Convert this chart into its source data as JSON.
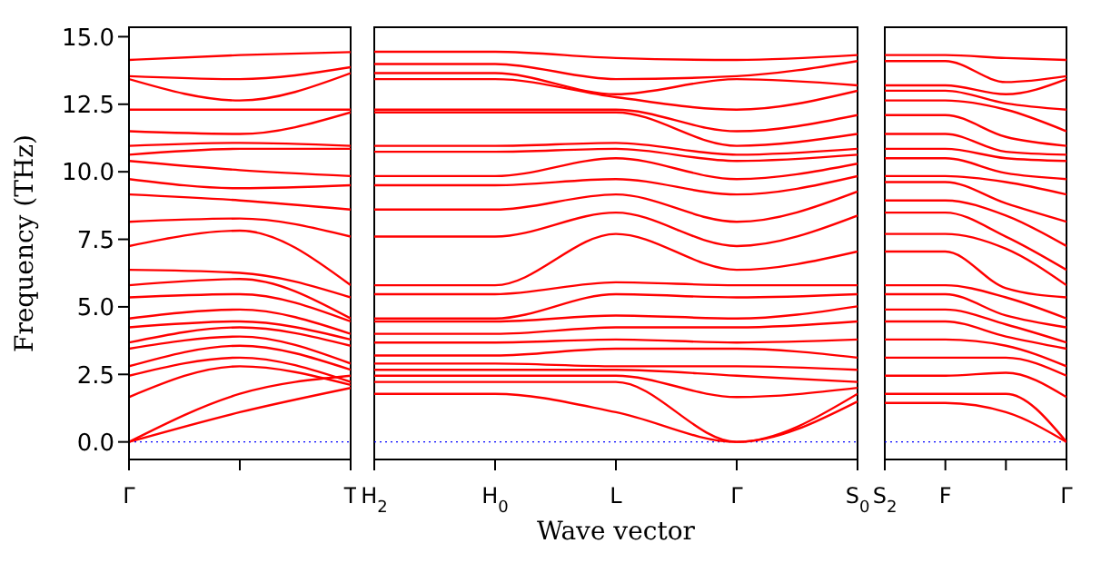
{
  "chart_data": [
    {
      "type": "line",
      "ylabel": "Frequency (THz)",
      "categories": [
        "Γ",
        null,
        "T"
      ],
      "ylim": [
        -0.65,
        15.35
      ],
      "yticks": [
        {
          "value": 0,
          "label": "0.0"
        },
        {
          "value": 2.5,
          "label": "2.5"
        },
        {
          "value": 5,
          "label": "5.0"
        },
        {
          "value": 7.5,
          "label": "7.5"
        },
        {
          "value": 10,
          "label": "10.0"
        },
        {
          "value": 12.5,
          "label": "12.5"
        },
        {
          "value": 15,
          "label": "15.0"
        }
      ],
      "ref_lines": [
        {
          "axis": "y",
          "value": 0,
          "color": "#0000ff",
          "line_style": "dotted"
        }
      ],
      "series": [
        {
          "color": "#ff0000",
          "values": [
            0,
            1.1,
            2.0
          ]
        },
        {
          "color": "#ff0000",
          "values": [
            0,
            1.78,
            2.45
          ]
        },
        {
          "color": "#ff0000",
          "values": [
            1.66,
            2.8,
            2.11
          ]
        },
        {
          "color": "#ff0000",
          "values": [
            2.45,
            3.12,
            2.22
          ]
        },
        {
          "color": "#ff0000",
          "values": [
            2.8,
            3.56,
            2.67
          ]
        },
        {
          "color": "#ff0000",
          "values": [
            3.45,
            3.9,
            2.9
          ]
        },
        {
          "color": "#ff0000",
          "values": [
            3.68,
            4.24,
            3.56
          ]
        },
        {
          "color": "#ff0000",
          "values": [
            4.24,
            4.46,
            3.79
          ]
        },
        {
          "color": "#ff0000",
          "values": [
            4.57,
            4.9,
            4.0
          ]
        },
        {
          "color": "#ff0000",
          "values": [
            5.35,
            5.47,
            4.46
          ]
        },
        {
          "color": "#ff0000",
          "values": [
            5.8,
            6.03,
            4.57
          ]
        },
        {
          "color": "#ff0000",
          "values": [
            6.37,
            6.26,
            5.35
          ]
        },
        {
          "color": "#ff0000",
          "values": [
            7.25,
            7.82,
            5.8
          ]
        },
        {
          "color": "#ff0000",
          "values": [
            8.15,
            8.27,
            7.6
          ]
        },
        {
          "color": "#ff0000",
          "values": [
            9.16,
            8.94,
            8.6
          ]
        },
        {
          "color": "#ff0000",
          "values": [
            9.73,
            9.39,
            9.5
          ]
        },
        {
          "color": "#ff0000",
          "values": [
            10.4,
            10.06,
            9.84
          ]
        },
        {
          "color": "#ff0000",
          "values": [
            10.63,
            10.85,
            10.85
          ]
        },
        {
          "color": "#ff0000",
          "values": [
            10.96,
            11.07,
            10.96
          ]
        },
        {
          "color": "#ff0000",
          "values": [
            11.5,
            11.4,
            12.2
          ]
        },
        {
          "color": "#ff0000",
          "values": [
            12.3,
            12.3,
            12.3
          ]
        },
        {
          "color": "#ff0000",
          "values": [
            13.43,
            12.64,
            13.65
          ]
        },
        {
          "color": "#ff0000",
          "values": [
            13.54,
            13.43,
            13.87
          ]
        },
        {
          "color": "#ff0000",
          "values": [
            14.14,
            14.32,
            14.43
          ]
        }
      ]
    },
    {
      "type": "line",
      "xlabel": "Wave vector",
      "tick_labels": "x",
      "categories": [
        "H$_{2}$",
        "H$_{0}$",
        "L",
        "Γ",
        "S$_{0}$"
      ],
      "ylim": [
        -0.65,
        15.35
      ],
      "ref_lines": [
        {
          "axis": "y",
          "value": 0,
          "color": "#0000ff",
          "line_style": "dotted"
        }
      ],
      "series": [
        {
          "color": "#ff0000",
          "values": [
            1.78,
            1.78,
            1.1,
            0,
            1.5
          ]
        },
        {
          "color": "#ff0000",
          "values": [
            2.22,
            2.22,
            2.22,
            0,
            1.78
          ]
        },
        {
          "color": "#ff0000",
          "values": [
            2.45,
            2.45,
            2.45,
            1.66,
            2.0
          ]
        },
        {
          "color": "#ff0000",
          "values": [
            2.67,
            2.67,
            2.67,
            2.45,
            2.22
          ]
        },
        {
          "color": "#ff0000",
          "values": [
            2.9,
            2.9,
            2.8,
            2.8,
            2.67
          ]
        },
        {
          "color": "#ff0000",
          "values": [
            3.2,
            3.2,
            3.45,
            3.45,
            3.12
          ]
        },
        {
          "color": "#ff0000",
          "values": [
            3.68,
            3.68,
            3.79,
            3.68,
            3.79
          ]
        },
        {
          "color": "#ff0000",
          "values": [
            4.0,
            4.0,
            4.24,
            4.24,
            4.46
          ]
        },
        {
          "color": "#ff0000",
          "values": [
            4.46,
            4.46,
            4.68,
            4.57,
            5.02
          ]
        },
        {
          "color": "#ff0000",
          "values": [
            4.57,
            4.57,
            5.47,
            5.35,
            5.47
          ]
        },
        {
          "color": "#ff0000",
          "values": [
            5.47,
            5.47,
            5.91,
            5.8,
            5.8
          ]
        },
        {
          "color": "#ff0000",
          "values": [
            5.8,
            5.8,
            7.7,
            6.37,
            7.05
          ]
        },
        {
          "color": "#ff0000",
          "values": [
            7.6,
            7.6,
            8.49,
            7.25,
            8.38
          ]
        },
        {
          "color": "#ff0000",
          "values": [
            8.6,
            8.6,
            9.16,
            8.15,
            9.27
          ]
        },
        {
          "color": "#ff0000",
          "values": [
            9.5,
            9.5,
            9.73,
            9.16,
            9.84
          ]
        },
        {
          "color": "#ff0000",
          "values": [
            9.84,
            9.84,
            10.5,
            9.73,
            10.3
          ]
        },
        {
          "color": "#ff0000",
          "values": [
            10.74,
            10.74,
            10.85,
            10.4,
            10.63
          ]
        },
        {
          "color": "#ff0000",
          "values": [
            10.96,
            10.96,
            11.07,
            10.63,
            10.85
          ]
        },
        {
          "color": "#ff0000",
          "values": [
            12.2,
            12.2,
            12.2,
            10.96,
            11.4
          ]
        },
        {
          "color": "#ff0000",
          "values": [
            12.3,
            12.3,
            12.3,
            11.5,
            12.1
          ]
        },
        {
          "color": "#ff0000",
          "values": [
            13.43,
            13.43,
            12.76,
            12.3,
            13.0
          ]
        },
        {
          "color": "#ff0000",
          "values": [
            13.65,
            13.65,
            12.87,
            13.43,
            13.2
          ]
        },
        {
          "color": "#ff0000",
          "values": [
            13.99,
            13.99,
            13.43,
            13.54,
            14.1
          ]
        },
        {
          "color": "#ff0000",
          "values": [
            14.44,
            14.44,
            14.21,
            14.14,
            14.32
          ]
        }
      ]
    },
    {
      "type": "line",
      "tick_labels": "x",
      "categories": [
        "S$_{2}$",
        "F",
        null,
        "Γ"
      ],
      "ylim": [
        -0.65,
        15.35
      ],
      "ref_lines": [
        {
          "axis": "y",
          "value": 0,
          "color": "#0000ff",
          "line_style": "dotted"
        }
      ],
      "series": [
        {
          "color": "#ff0000",
          "values": [
            1.44,
            1.44,
            1.1,
            0
          ]
        },
        {
          "color": "#ff0000",
          "values": [
            1.78,
            1.78,
            1.78,
            0
          ]
        },
        {
          "color": "#ff0000",
          "values": [
            2.45,
            2.45,
            2.56,
            1.66
          ]
        },
        {
          "color": "#ff0000",
          "values": [
            3.12,
            3.12,
            3.12,
            2.45
          ]
        },
        {
          "color": "#ff0000",
          "values": [
            3.79,
            3.79,
            3.56,
            2.8
          ]
        },
        {
          "color": "#ff0000",
          "values": [
            4.46,
            4.46,
            3.9,
            3.45
          ]
        },
        {
          "color": "#ff0000",
          "values": [
            4.9,
            4.9,
            4.35,
            3.68
          ]
        },
        {
          "color": "#ff0000",
          "values": [
            5.47,
            5.47,
            4.68,
            4.24
          ]
        },
        {
          "color": "#ff0000",
          "values": [
            5.8,
            5.8,
            5.35,
            4.57
          ]
        },
        {
          "color": "#ff0000",
          "values": [
            7.05,
            7.05,
            5.69,
            5.35
          ]
        },
        {
          "color": "#ff0000",
          "values": [
            7.7,
            7.7,
            7.15,
            5.8
          ]
        },
        {
          "color": "#ff0000",
          "values": [
            8.49,
            8.49,
            7.6,
            6.37
          ]
        },
        {
          "color": "#ff0000",
          "values": [
            8.94,
            8.94,
            8.38,
            7.25
          ]
        },
        {
          "color": "#ff0000",
          "values": [
            9.62,
            9.62,
            8.83,
            8.15
          ]
        },
        {
          "color": "#ff0000",
          "values": [
            9.84,
            9.84,
            9.62,
            9.16
          ]
        },
        {
          "color": "#ff0000",
          "values": [
            10.5,
            10.5,
            9.95,
            9.73
          ]
        },
        {
          "color": "#ff0000",
          "values": [
            10.85,
            10.85,
            10.5,
            10.4
          ]
        },
        {
          "color": "#ff0000",
          "values": [
            11.4,
            11.4,
            10.74,
            10.63
          ]
        },
        {
          "color": "#ff0000",
          "values": [
            12.1,
            12.1,
            11.29,
            10.96
          ]
        },
        {
          "color": "#ff0000",
          "values": [
            12.64,
            12.64,
            12.3,
            11.5
          ]
        },
        {
          "color": "#ff0000",
          "values": [
            13.0,
            13.0,
            12.53,
            12.3
          ]
        },
        {
          "color": "#ff0000",
          "values": [
            13.2,
            13.2,
            12.87,
            13.43
          ]
        },
        {
          "color": "#ff0000",
          "values": [
            14.1,
            14.1,
            13.32,
            13.54
          ]
        },
        {
          "color": "#ff0000",
          "values": [
            14.32,
            14.32,
            14.21,
            14.14
          ]
        }
      ]
    }
  ]
}
